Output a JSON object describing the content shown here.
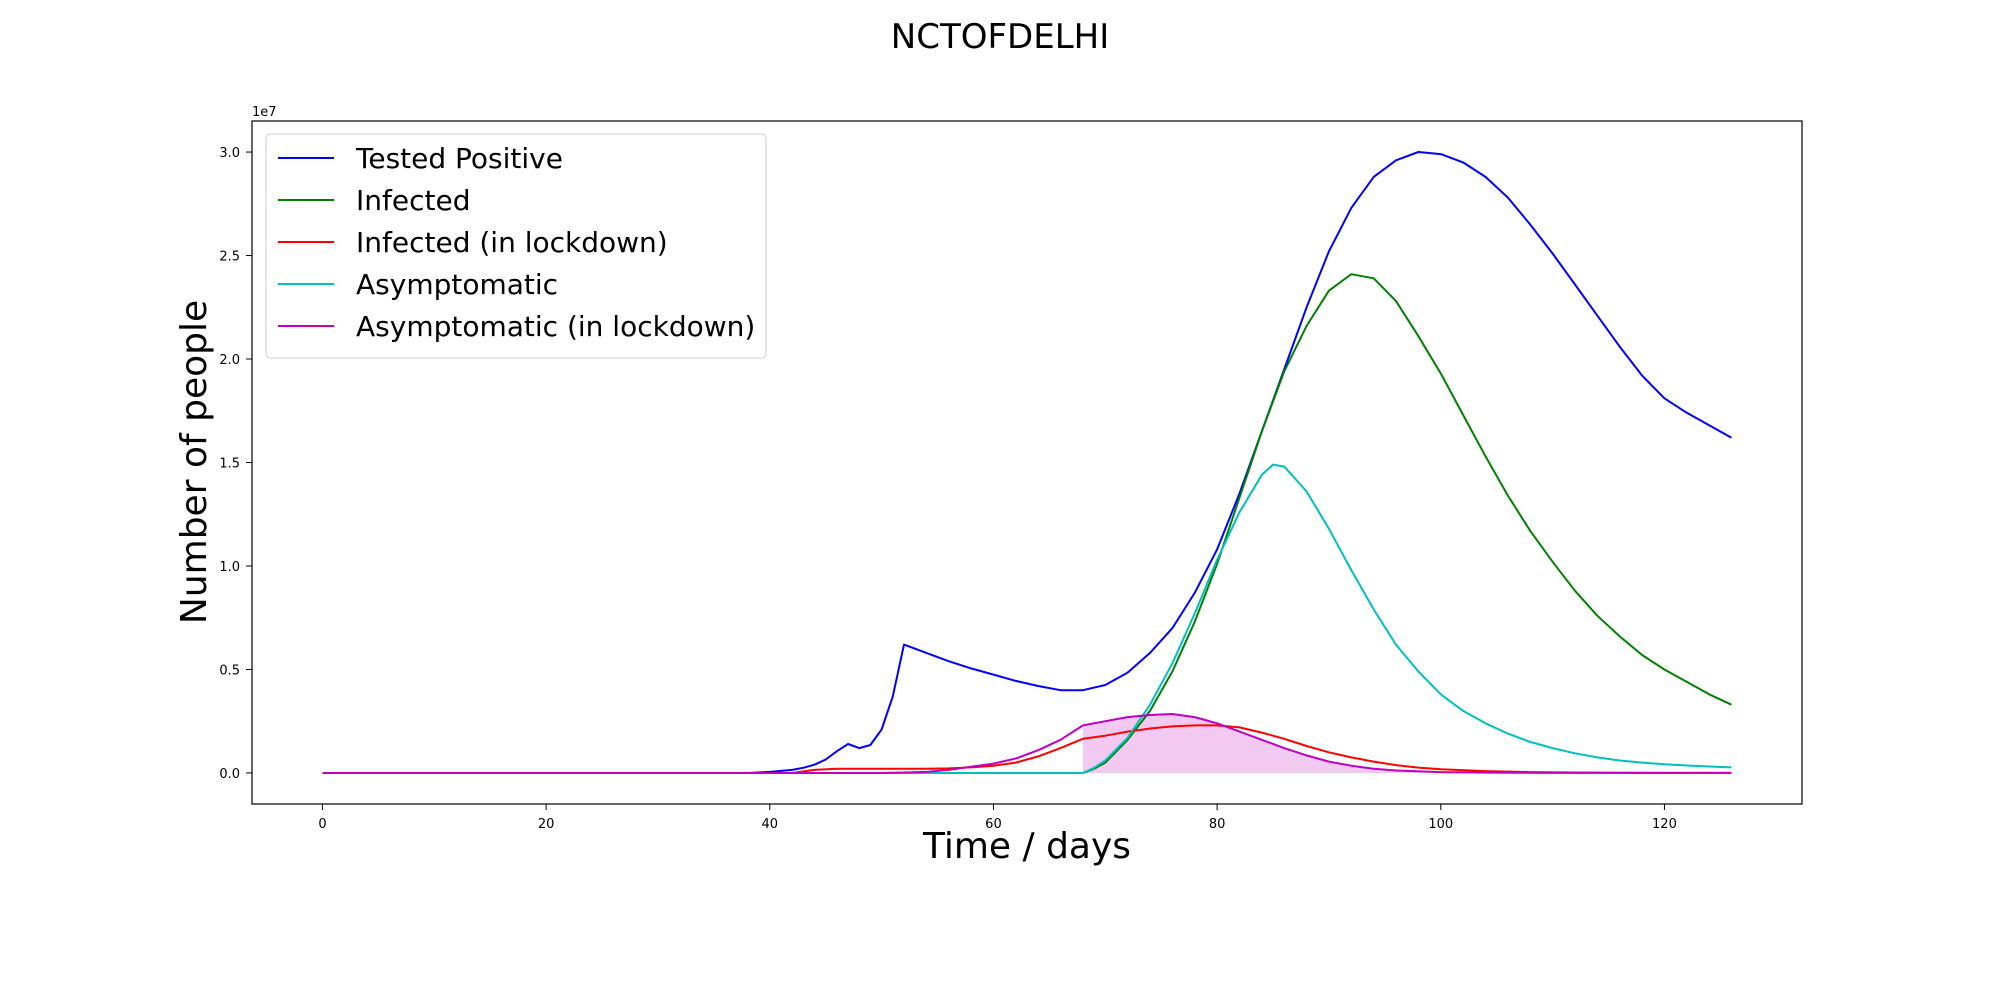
{
  "chart_data": {
    "type": "line",
    "title": "NCTOFDELHI",
    "xlabel": "Time / days",
    "ylabel": "Number of people",
    "y_offset_label": "1e7",
    "xlim": [
      -6.3,
      132.3
    ],
    "ylim": [
      -1500000,
      31500000
    ],
    "x_ticks": [
      0,
      20,
      40,
      60,
      80,
      100,
      120
    ],
    "x_tick_labels": [
      "0",
      "20",
      "40",
      "60",
      "80",
      "100",
      "120"
    ],
    "y_ticks": [
      0,
      5000000,
      10000000,
      15000000,
      20000000,
      25000000,
      30000000
    ],
    "y_tick_labels": [
      "0.0",
      "0.5",
      "1.0",
      "1.5",
      "2.0",
      "2.5",
      "3.0"
    ],
    "grid": false,
    "legend_position": "top-left",
    "fill_series": "Asymptomatic (in lockdown)",
    "fill_color": "#f2c9f0",
    "series": [
      {
        "name": "Tested Positive",
        "color": "#0000ff",
        "points": [
          [
            0,
            0
          ],
          [
            38,
            0
          ],
          [
            40,
            50000
          ],
          [
            42,
            150000
          ],
          [
            43,
            250000
          ],
          [
            44,
            400000
          ],
          [
            45,
            650000
          ],
          [
            46,
            1050000
          ],
          [
            47,
            1400000
          ],
          [
            48,
            1200000
          ],
          [
            49,
            1350000
          ],
          [
            50,
            2100000
          ],
          [
            51,
            3700000
          ],
          [
            52,
            6200000
          ],
          [
            54,
            5800000
          ],
          [
            56,
            5400000
          ],
          [
            58,
            5050000
          ],
          [
            60,
            4750000
          ],
          [
            62,
            4450000
          ],
          [
            64,
            4200000
          ],
          [
            66,
            4000000
          ],
          [
            68,
            4000000
          ],
          [
            70,
            4250000
          ],
          [
            72,
            4850000
          ],
          [
            74,
            5800000
          ],
          [
            76,
            7000000
          ],
          [
            78,
            8700000
          ],
          [
            80,
            10800000
          ],
          [
            82,
            13500000
          ],
          [
            84,
            16500000
          ],
          [
            86,
            19500000
          ],
          [
            88,
            22500000
          ],
          [
            90,
            25200000
          ],
          [
            92,
            27300000
          ],
          [
            94,
            28800000
          ],
          [
            96,
            29600000
          ],
          [
            98,
            30000000
          ],
          [
            100,
            29900000
          ],
          [
            102,
            29500000
          ],
          [
            104,
            28800000
          ],
          [
            106,
            27800000
          ],
          [
            108,
            26500000
          ],
          [
            110,
            25100000
          ],
          [
            112,
            23600000
          ],
          [
            114,
            22100000
          ],
          [
            116,
            20600000
          ],
          [
            118,
            19200000
          ],
          [
            120,
            18100000
          ],
          [
            122,
            17400000
          ],
          [
            124,
            16800000
          ],
          [
            126,
            16200000
          ]
        ]
      },
      {
        "name": "Infected",
        "color": "#008000",
        "points": [
          [
            0,
            0
          ],
          [
            68,
            0
          ],
          [
            69,
            200000
          ],
          [
            70,
            500000
          ],
          [
            72,
            1600000
          ],
          [
            74,
            3000000
          ],
          [
            76,
            4900000
          ],
          [
            78,
            7300000
          ],
          [
            80,
            10100000
          ],
          [
            82,
            13300000
          ],
          [
            84,
            16500000
          ],
          [
            86,
            19400000
          ],
          [
            88,
            21600000
          ],
          [
            90,
            23300000
          ],
          [
            92,
            24100000
          ],
          [
            94,
            23900000
          ],
          [
            96,
            22800000
          ],
          [
            98,
            21100000
          ],
          [
            100,
            19300000
          ],
          [
            102,
            17300000
          ],
          [
            104,
            15300000
          ],
          [
            106,
            13400000
          ],
          [
            108,
            11700000
          ],
          [
            110,
            10200000
          ],
          [
            112,
            8800000
          ],
          [
            114,
            7600000
          ],
          [
            116,
            6600000
          ],
          [
            118,
            5700000
          ],
          [
            120,
            5000000
          ],
          [
            122,
            4400000
          ],
          [
            124,
            3800000
          ],
          [
            126,
            3300000
          ]
        ]
      },
      {
        "name": "Infected (in lockdown)",
        "color": "#ff0000",
        "points": [
          [
            0,
            0
          ],
          [
            42,
            0
          ],
          [
            44,
            150000
          ],
          [
            46,
            200000
          ],
          [
            50,
            200000
          ],
          [
            54,
            200000
          ],
          [
            56,
            220000
          ],
          [
            58,
            270000
          ],
          [
            60,
            350000
          ],
          [
            62,
            500000
          ],
          [
            64,
            800000
          ],
          [
            66,
            1200000
          ],
          [
            68,
            1650000
          ],
          [
            70,
            1800000
          ],
          [
            72,
            2000000
          ],
          [
            74,
            2150000
          ],
          [
            76,
            2250000
          ],
          [
            78,
            2300000
          ],
          [
            80,
            2300000
          ],
          [
            82,
            2200000
          ],
          [
            84,
            1950000
          ],
          [
            86,
            1650000
          ],
          [
            88,
            1300000
          ],
          [
            90,
            1000000
          ],
          [
            92,
            750000
          ],
          [
            94,
            550000
          ],
          [
            96,
            380000
          ],
          [
            98,
            260000
          ],
          [
            100,
            180000
          ],
          [
            104,
            90000
          ],
          [
            108,
            40000
          ],
          [
            112,
            20000
          ],
          [
            116,
            10000
          ],
          [
            120,
            5000
          ],
          [
            126,
            2000
          ]
        ]
      },
      {
        "name": "Asymptomatic",
        "color": "#00bfbf",
        "points": [
          [
            0,
            0
          ],
          [
            68,
            0
          ],
          [
            69,
            250000
          ],
          [
            70,
            600000
          ],
          [
            72,
            1700000
          ],
          [
            74,
            3300000
          ],
          [
            76,
            5300000
          ],
          [
            78,
            7700000
          ],
          [
            80,
            10300000
          ],
          [
            82,
            12600000
          ],
          [
            84,
            14400000
          ],
          [
            85,
            14900000
          ],
          [
            86,
            14800000
          ],
          [
            88,
            13600000
          ],
          [
            90,
            11800000
          ],
          [
            92,
            9800000
          ],
          [
            94,
            7900000
          ],
          [
            96,
            6200000
          ],
          [
            98,
            4900000
          ],
          [
            100,
            3800000
          ],
          [
            102,
            3000000
          ],
          [
            104,
            2400000
          ],
          [
            106,
            1900000
          ],
          [
            108,
            1500000
          ],
          [
            110,
            1200000
          ],
          [
            112,
            950000
          ],
          [
            114,
            750000
          ],
          [
            116,
            600000
          ],
          [
            118,
            500000
          ],
          [
            120,
            420000
          ],
          [
            122,
            360000
          ],
          [
            124,
            310000
          ],
          [
            126,
            270000
          ]
        ]
      },
      {
        "name": "Asymptomatic (in lockdown)",
        "color": "#bf00bf",
        "points": [
          [
            0,
            0
          ],
          [
            50,
            0
          ],
          [
            54,
            50000
          ],
          [
            56,
            150000
          ],
          [
            58,
            300000
          ],
          [
            60,
            450000
          ],
          [
            62,
            700000
          ],
          [
            64,
            1100000
          ],
          [
            66,
            1600000
          ],
          [
            68,
            2300000
          ],
          [
            70,
            2500000
          ],
          [
            72,
            2700000
          ],
          [
            74,
            2800000
          ],
          [
            76,
            2850000
          ],
          [
            78,
            2700000
          ],
          [
            80,
            2400000
          ],
          [
            82,
            2000000
          ],
          [
            84,
            1600000
          ],
          [
            86,
            1200000
          ],
          [
            88,
            850000
          ],
          [
            90,
            550000
          ],
          [
            92,
            350000
          ],
          [
            94,
            200000
          ],
          [
            96,
            120000
          ],
          [
            100,
            40000
          ],
          [
            104,
            15000
          ],
          [
            110,
            5000
          ],
          [
            118,
            2000
          ],
          [
            126,
            1000
          ]
        ]
      }
    ]
  }
}
